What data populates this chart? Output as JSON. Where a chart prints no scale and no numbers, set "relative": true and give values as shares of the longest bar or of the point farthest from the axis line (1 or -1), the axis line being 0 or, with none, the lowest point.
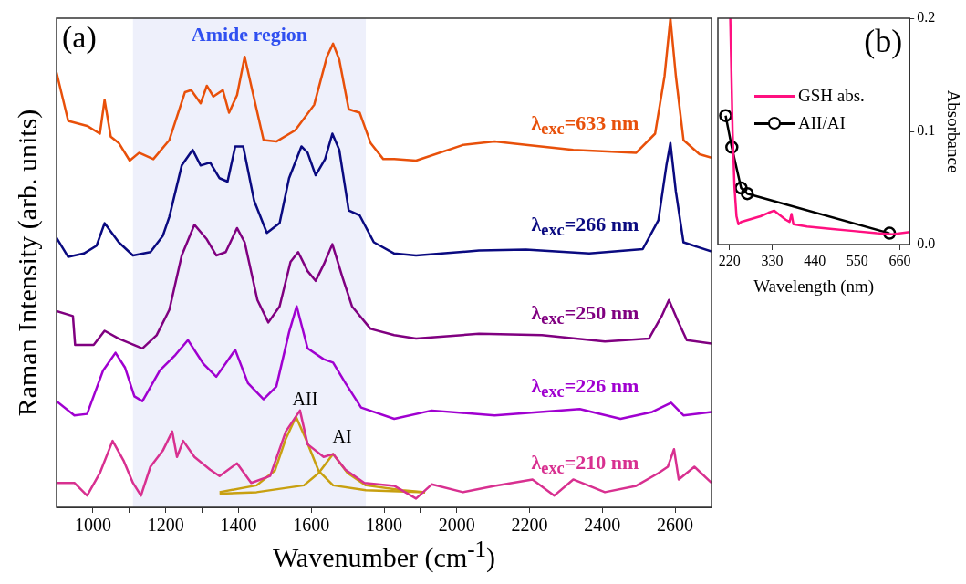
{
  "chart_data": [
    {
      "type": "line",
      "relative": true,
      "xlabel": "Wavenumber (cm$^{-1}$)",
      "ylabel": "Raman Intensity (arb. units)",
      "xlim": [
        900,
        2700
      ],
      "xticks": [
        1000,
        {
          "value": 1100,
          "label": null
        },
        1200,
        {
          "value": 1300,
          "label": null
        },
        1400,
        {
          "value": 1500,
          "label": null
        },
        1600,
        {
          "value": 1700,
          "label": null
        },
        1800,
        {
          "value": 1900,
          "label": null
        },
        2000,
        {
          "value": 2100,
          "label": null
        },
        2200,
        {
          "value": 2300,
          "label": null
        },
        2400,
        {
          "value": 2500,
          "label": null
        },
        2600
      ],
      "grid": false,
      "legend": false,
      "marker": "none",
      "bands": [
        {
          "axis": "x",
          "from": 1110,
          "to": 1750,
          "label": "Amide region",
          "color": "#eef0fb"
        }
      ],
      "annotations": [
        "(a)",
        {
          "text": "AII",
          "x": 1558,
          "y": 0.185
        },
        {
          "text": "AI",
          "x": 1660,
          "y": 0.109
        }
      ],
      "series": [
        {
          "name": "λ$_{exc}$=633 nm",
          "color": "#e8500a",
          "x": [
            900,
            932,
            984,
            1019,
            1032,
            1049,
            1071,
            1101,
            1127,
            1166,
            1210,
            1253,
            1270,
            1296,
            1313,
            1331,
            1357,
            1374,
            1396,
            1417,
            1439,
            1469,
            1504,
            1556,
            1608,
            1643,
            1660,
            1677,
            1703,
            1733,
            1763,
            1798,
            1828,
            1888,
            2017,
            2104,
            2190,
            2320,
            2493,
            2545,
            2571,
            2587,
            2602,
            2623,
            2667,
            2700
          ],
          "values": [
            0.889,
            0.79,
            0.78,
            0.764,
            0.833,
            0.758,
            0.745,
            0.709,
            0.725,
            0.712,
            0.751,
            0.849,
            0.853,
            0.826,
            0.862,
            0.84,
            0.853,
            0.807,
            0.843,
            0.921,
            0.849,
            0.751,
            0.748,
            0.771,
            0.823,
            0.921,
            0.948,
            0.915,
            0.814,
            0.807,
            0.745,
            0.712,
            0.712,
            0.709,
            0.741,
            0.748,
            0.741,
            0.731,
            0.725,
            0.764,
            0.882,
            1,
            0.882,
            0.751,
            0.722,
            0.715
          ]
        },
        {
          "name": "λ$_{exc}$=266 nm",
          "color": "#0a0a80",
          "x": [
            900,
            932,
            975,
            1010,
            1032,
            1071,
            1110,
            1158,
            1192,
            1210,
            1244,
            1274,
            1296,
            1322,
            1348,
            1370,
            1391,
            1413,
            1443,
            1478,
            1513,
            1539,
            1573,
            1590,
            1612,
            1638,
            1658,
            1677,
            1703,
            1733,
            1772,
            1828,
            1888,
            2061,
            2190,
            2364,
            2511,
            2554,
            2576,
            2587,
            2602,
            2623,
            2700
          ],
          "values": [
            0.551,
            0.512,
            0.519,
            0.535,
            0.581,
            0.542,
            0.515,
            0.522,
            0.555,
            0.594,
            0.699,
            0.731,
            0.699,
            0.705,
            0.673,
            0.666,
            0.738,
            0.738,
            0.627,
            0.561,
            0.581,
            0.673,
            0.738,
            0.725,
            0.679,
            0.712,
            0.764,
            0.731,
            0.607,
            0.597,
            0.542,
            0.519,
            0.515,
            0.525,
            0.527,
            0.519,
            0.528,
            0.587,
            0.699,
            0.745,
            0.646,
            0.542,
            0.523
          ]
        },
        {
          "name": "λ$_{exc}$=250 nm",
          "color": "#800080",
          "x": [
            900,
            945,
            951,
            1002,
            1032,
            1071,
            1136,
            1175,
            1210,
            1244,
            1279,
            1313,
            1339,
            1365,
            1396,
            1417,
            1452,
            1482,
            1513,
            1543,
            1564,
            1590,
            1612,
            1634,
            1658,
            1686,
            1712,
            1763,
            1828,
            1888,
            2061,
            2234,
            2407,
            2528,
            2563,
            2583,
            2606,
            2632,
            2700
          ],
          "values": [
            0.401,
            0.391,
            0.332,
            0.332,
            0.361,
            0.345,
            0.325,
            0.352,
            0.404,
            0.515,
            0.578,
            0.548,
            0.515,
            0.522,
            0.571,
            0.542,
            0.424,
            0.378,
            0.411,
            0.502,
            0.522,
            0.483,
            0.463,
            0.496,
            0.538,
            0.47,
            0.411,
            0.365,
            0.352,
            0.345,
            0.355,
            0.352,
            0.339,
            0.345,
            0.391,
            0.424,
            0.384,
            0.342,
            0.335
          ]
        },
        {
          "name": "λ$_{exc}$=226 nm",
          "color": "#a000d0",
          "x": [
            900,
            949,
            984,
            1028,
            1062,
            1088,
            1114,
            1136,
            1184,
            1227,
            1261,
            1304,
            1339,
            1391,
            1426,
            1469,
            1504,
            1539,
            1560,
            1590,
            1634,
            1660,
            1694,
            1737,
            1828,
            1931,
            2104,
            2338,
            2450,
            2537,
            2589,
            2623,
            2700
          ],
          "values": [
            0.217,
            0.188,
            0.191,
            0.28,
            0.316,
            0.286,
            0.227,
            0.217,
            0.28,
            0.312,
            0.342,
            0.293,
            0.267,
            0.322,
            0.254,
            0.221,
            0.247,
            0.358,
            0.411,
            0.325,
            0.303,
            0.296,
            0.254,
            0.204,
            0.181,
            0.198,
            0.188,
            0.201,
            0.181,
            0.195,
            0.214,
            0.188,
            0.195
          ]
        },
        {
          "name": "λ$_{exc}$=210 nm",
          "color": "#d83090",
          "x": [
            900,
            949,
            984,
            1019,
            1054,
            1084,
            1110,
            1132,
            1158,
            1192,
            1218,
            1231,
            1248,
            1279,
            1322,
            1348,
            1396,
            1435,
            1487,
            1530,
            1569,
            1590,
            1634,
            1660,
            1694,
            1746,
            1828,
            1888,
            1931,
            2017,
            2104,
            2208,
            2268,
            2320,
            2407,
            2493,
            2554,
            2580,
            2597,
            2610,
            2653,
            2700
          ],
          "values": [
            0.05,
            0.05,
            0.024,
            0.07,
            0.136,
            0.096,
            0.05,
            0.024,
            0.083,
            0.116,
            0.155,
            0.103,
            0.136,
            0.103,
            0.077,
            0.064,
            0.09,
            0.05,
            0.064,
            0.155,
            0.198,
            0.129,
            0.103,
            0.109,
            0.077,
            0.05,
            0.044,
            0.018,
            0.047,
            0.031,
            0.044,
            0.057,
            0.024,
            0.057,
            0.031,
            0.044,
            0.07,
            0.083,
            0.119,
            0.057,
            0.083,
            0.05
          ]
        },
        {
          "color": "#c8a010",
          "x": [
            1348,
            1450,
            1500,
            1530,
            1558,
            1585,
            1620,
            1660,
            1750,
            1913
          ],
          "values": [
            0.031,
            0.045,
            0.075,
            0.14,
            0.185,
            0.14,
            0.075,
            0.045,
            0.035,
            0.031
          ]
        },
        {
          "color": "#c8a010",
          "x": [
            1348,
            1450,
            1580,
            1620,
            1660,
            1700,
            1750,
            1850,
            1913
          ],
          "values": [
            0.028,
            0.031,
            0.045,
            0.07,
            0.109,
            0.07,
            0.045,
            0.035,
            0.031
          ]
        }
      ]
    },
    {
      "type": "line",
      "xlabel": "Wavelength (nm)",
      "ylabel": "Absorbance",
      "xlim": [
        190,
        685
      ],
      "xticks": [
        220,
        330,
        440,
        550,
        660
      ],
      "ylim": [
        0,
        0.2
      ],
      "yticks": [
        {
          "value": 0,
          "label": "0.0"
        },
        0.1,
        0.2
      ],
      "grid": false,
      "legend": "left",
      "annotations": [
        "(b)"
      ],
      "series": [
        {
          "name": "GSH abs.",
          "color": "#ff1080",
          "marker": "none",
          "x": [
            222,
            228,
            233,
            238,
            243,
            250,
            270,
            300,
            320,
            335,
            350,
            365,
            375,
            380,
            385,
            420,
            480,
            540,
            600,
            640,
            685
          ],
          "values": [
            0.2,
            0.1,
            0.05,
            0.025,
            0.018,
            0.02,
            0.022,
            0.025,
            0.028,
            0.03,
            0.026,
            0.022,
            0.02,
            0.027,
            0.018,
            0.016,
            0.014,
            0.012,
            0.01,
            0.009,
            0.011
          ]
        },
        {
          "name": "AII/AI",
          "color": "#000000",
          "marker": "circle",
          "x": [
            210,
            226,
            250,
            266,
            633
          ],
          "values": [
            0.114,
            0.086,
            0.05,
            0.045,
            0.01
          ]
        }
      ]
    }
  ]
}
